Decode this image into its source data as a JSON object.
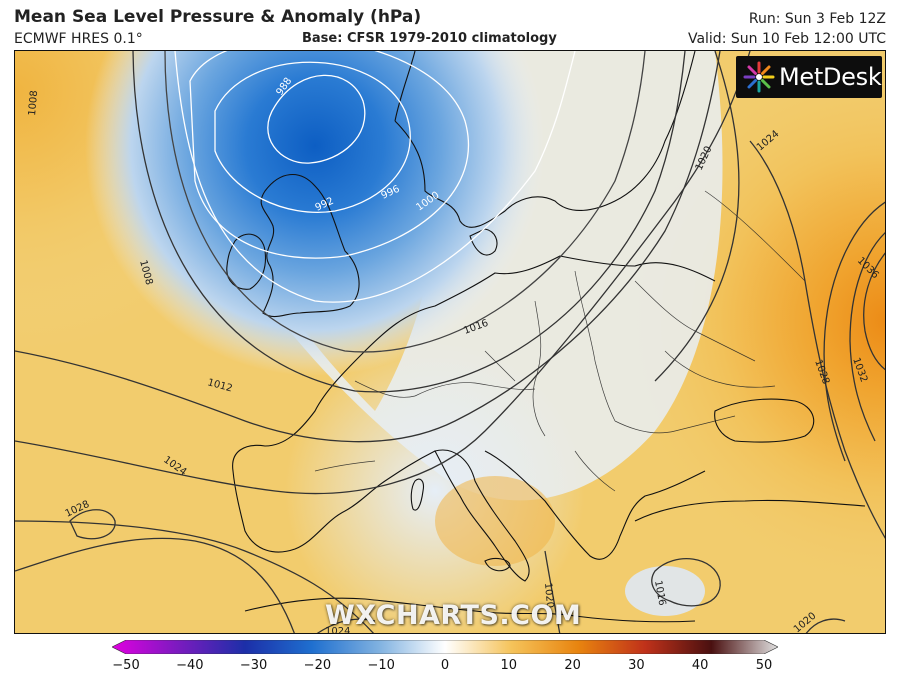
{
  "header": {
    "title": "Mean Sea Level Pressure & Anomaly (hPa)",
    "model": "ECMWF HRES 0.1°",
    "base": "Base: CFSR 1979-2010 climatology",
    "run": "Run: Sun 3 Feb 12Z",
    "valid": "Valid: Sun 10 Feb 12:00 UTC"
  },
  "logo": {
    "text": "MetDesk",
    "icon": "metdesk-starburst-icon"
  },
  "watermark": "WXCHARTS.COM",
  "isobars": [
    {
      "label": "988"
    },
    {
      "label": "992"
    },
    {
      "label": "996"
    },
    {
      "label": "1000"
    },
    {
      "label": "1008"
    },
    {
      "label": "1008"
    },
    {
      "label": "1012"
    },
    {
      "label": "1016"
    },
    {
      "label": "1016"
    },
    {
      "label": "1020"
    },
    {
      "label": "1024"
    },
    {
      "label": "1024"
    },
    {
      "label": "1024"
    },
    {
      "label": "1028"
    },
    {
      "label": "1028"
    },
    {
      "label": "1032"
    },
    {
      "label": "1036"
    },
    {
      "label": "1020"
    },
    {
      "label": "1020"
    }
  ],
  "colorbar": {
    "ticks": [
      "−50",
      "−40",
      "−30",
      "−20",
      "−10",
      "0",
      "10",
      "20",
      "30",
      "40",
      "50"
    ],
    "min": -50,
    "max": 50,
    "colors": {
      "neg50": "#e000e0",
      "neg40": "#7a1bbf",
      "neg30": "#1c2fa8",
      "neg20": "#1f6fcf",
      "neg10": "#7fb1e0",
      "zero": "#ffffff",
      "pos10": "#f5c35a",
      "pos20": "#e8840f",
      "pos30": "#c0321a",
      "pos40": "#4a1010",
      "pos50": "#e0e0e0"
    }
  },
  "colors": {
    "ocean_high": "#f3cf74",
    "land_high": "#f0c563",
    "low_core": "#1466c4",
    "neutral": "#f2f4f7"
  }
}
